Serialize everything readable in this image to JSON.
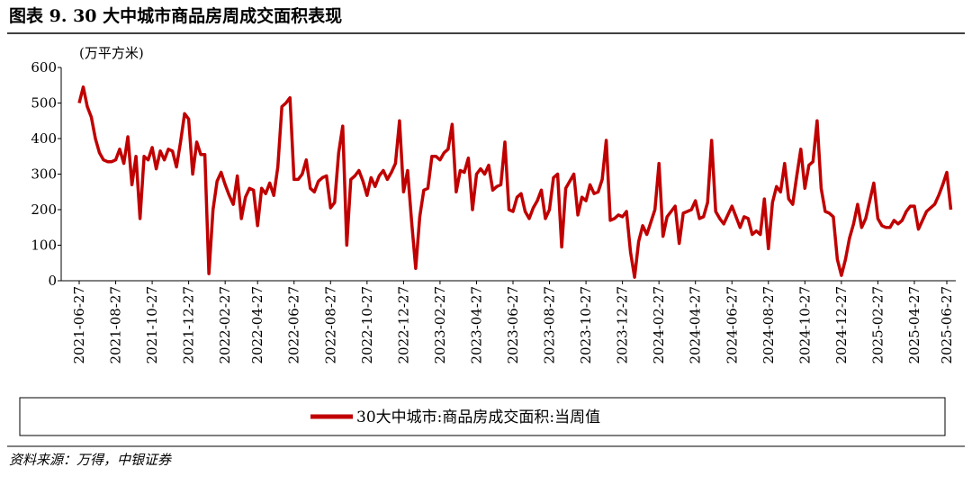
{
  "chart_data": {
    "type": "line",
    "title": "图表 9. 30 大中城市商品房周成交面积表现",
    "y_label": "(万平方米)",
    "source": "资料来源：万得，中银证券",
    "ylim": [
      0,
      600
    ],
    "yticks": [
      0,
      100,
      200,
      300,
      400,
      500,
      600
    ],
    "categories": [
      "2021-06-27",
      null,
      null,
      null,
      null,
      null,
      null,
      null,
      null,
      "2021-08-27",
      null,
      null,
      null,
      null,
      null,
      null,
      null,
      null,
      "2021-10-27",
      null,
      null,
      null,
      null,
      null,
      null,
      null,
      null,
      "2021-12-27",
      null,
      null,
      null,
      null,
      null,
      null,
      null,
      null,
      "2022-02-27",
      null,
      null,
      null,
      null,
      null,
      null,
      null,
      "2022-04-27",
      null,
      null,
      null,
      null,
      null,
      null,
      null,
      null,
      "2022-06-27",
      null,
      null,
      null,
      null,
      null,
      null,
      null,
      null,
      "2022-08-27",
      null,
      null,
      null,
      null,
      null,
      null,
      null,
      null,
      "2022-10-27",
      null,
      null,
      null,
      null,
      null,
      null,
      null,
      null,
      "2022-12-27",
      null,
      null,
      null,
      null,
      null,
      null,
      null,
      null,
      "2023-02-27",
      null,
      null,
      null,
      null,
      null,
      null,
      null,
      null,
      "2023-04-27",
      null,
      null,
      null,
      null,
      null,
      null,
      null,
      null,
      "2023-06-27",
      null,
      null,
      null,
      null,
      null,
      null,
      null,
      null,
      "2023-08-27",
      null,
      null,
      null,
      null,
      null,
      null,
      null,
      null,
      "2023-10-27",
      null,
      null,
      null,
      null,
      null,
      null,
      null,
      null,
      "2023-12-27",
      null,
      null,
      null,
      null,
      null,
      null,
      null,
      null,
      "2024-02-27",
      null,
      null,
      null,
      null,
      null,
      null,
      null,
      null,
      "2024-04-27",
      null,
      null,
      null,
      null,
      null,
      null,
      null,
      null,
      "2024-06-27",
      null,
      null,
      null,
      null,
      null,
      null,
      null,
      null,
      "2024-08-27",
      null,
      null,
      null,
      null,
      null,
      null,
      null,
      null,
      "2024-10-27",
      null,
      null,
      null,
      null,
      null,
      null,
      null,
      null,
      "2024-12-27",
      null,
      null,
      null,
      null,
      null,
      null,
      null,
      null,
      "2025-02-27",
      null,
      null,
      null,
      null,
      null,
      null,
      null,
      null,
      "2025-04-27",
      null,
      null,
      null,
      null,
      null,
      null,
      null,
      "2025-06-27",
      null
    ],
    "series": [
      {
        "name": "30大中城市:商品房成交面积:当周值",
        "color": "#c00000",
        "values": [
          500,
          545,
          490,
          460,
          400,
          360,
          340,
          335,
          335,
          340,
          370,
          330,
          405,
          270,
          350,
          175,
          350,
          340,
          375,
          315,
          365,
          340,
          370,
          365,
          320,
          390,
          470,
          455,
          300,
          390,
          355,
          355,
          20,
          200,
          280,
          305,
          270,
          240,
          215,
          295,
          175,
          235,
          260,
          255,
          155,
          260,
          245,
          275,
          240,
          320,
          490,
          500,
          515,
          285,
          285,
          300,
          340,
          260,
          250,
          280,
          290,
          295,
          205,
          220,
          360,
          435,
          100,
          285,
          295,
          310,
          280,
          240,
          290,
          265,
          295,
          310,
          285,
          305,
          330,
          450,
          250,
          310,
          165,
          35,
          180,
          255,
          260,
          350,
          350,
          340,
          360,
          370,
          440,
          250,
          310,
          305,
          345,
          200,
          300,
          315,
          300,
          325,
          255,
          265,
          270,
          390,
          200,
          195,
          235,
          245,
          195,
          175,
          205,
          225,
          255,
          175,
          200,
          290,
          300,
          95,
          260,
          280,
          300,
          185,
          235,
          225,
          270,
          245,
          250,
          285,
          395,
          170,
          175,
          185,
          180,
          195,
          80,
          10,
          110,
          155,
          130,
          165,
          200,
          330,
          125,
          180,
          195,
          210,
          105,
          190,
          195,
          200,
          225,
          175,
          180,
          220,
          395,
          195,
          175,
          160,
          185,
          210,
          180,
          150,
          180,
          175,
          130,
          140,
          130,
          230,
          90,
          220,
          265,
          250,
          330,
          230,
          215,
          295,
          370,
          260,
          325,
          335,
          450,
          260,
          195,
          190,
          180,
          60,
          15,
          60,
          120,
          160,
          215,
          150,
          175,
          225,
          275,
          175,
          155,
          150,
          150,
          170,
          160,
          170,
          195,
          210,
          210,
          145,
          170,
          195,
          205,
          215,
          240,
          270,
          305,
          200
        ]
      }
    ]
  }
}
